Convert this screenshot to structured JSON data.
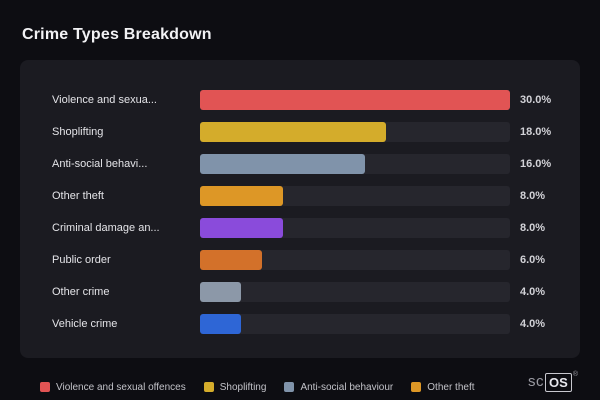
{
  "page": {
    "title": "Crime Types Breakdown"
  },
  "chart_data": {
    "type": "bar",
    "orientation": "horizontal",
    "title": "Crime Types Breakdown",
    "xlabel": "",
    "ylabel": "",
    "xlim": [
      0,
      30
    ],
    "grid": false,
    "categories": [
      "Violence and sexua...",
      "Shoplifting",
      "Anti-social behavi...",
      "Other theft",
      "Criminal damage an...",
      "Public order",
      "Other crime",
      "Vehicle crime"
    ],
    "values": [
      30.0,
      18.0,
      16.0,
      8.0,
      8.0,
      6.0,
      4.0,
      4.0
    ],
    "value_labels": [
      "30.0%",
      "18.0%",
      "16.0%",
      "8.0%",
      "8.0%",
      "6.0%",
      "4.0%",
      "4.0%"
    ],
    "bar_colors": [
      "#e15454",
      "#d4ac2b",
      "#8093aa",
      "#dd9726",
      "#8a4bdb",
      "#d3712a",
      "#8c98a8",
      "#2e66d6"
    ],
    "track_color": "#26262d",
    "legend_position": "bottom"
  },
  "legend": {
    "items": [
      {
        "label": "Violence and sexual offences",
        "color": "#e15454"
      },
      {
        "label": "Shoplifting",
        "color": "#d4ac2b"
      },
      {
        "label": "Anti-social behaviour",
        "color": "#8093aa"
      },
      {
        "label": "Other theft",
        "color": "#dd9726"
      }
    ]
  },
  "branding": {
    "prefix": "sc",
    "box": "OS",
    "registered": "®"
  }
}
